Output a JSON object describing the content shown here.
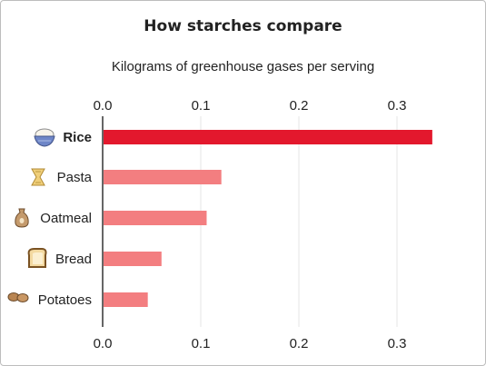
{
  "chart_data": {
    "type": "bar",
    "orientation": "horizontal",
    "title": "How starches compare",
    "subtitle": "Kilograms of greenhouse gases per serving",
    "categories": [
      "Rice",
      "Pasta",
      "Oatmeal",
      "Bread",
      "Potatoes"
    ],
    "category_icons": [
      "rice-bowl-icon",
      "pasta-icon",
      "oatmeal-sack-icon",
      "bread-icon",
      "potatoes-icon"
    ],
    "values": [
      0.336,
      0.121,
      0.106,
      0.06,
      0.046
    ],
    "highlight": "Rice",
    "xlim": [
      0,
      0.34
    ],
    "xticks": [
      0,
      0.1,
      0.2,
      0.3
    ],
    "xtick_labels": [
      "0.0",
      "0.1",
      "0.2",
      "0.3"
    ],
    "grid": "vertical",
    "colors": {
      "highlight": "#e3182d",
      "bar": "#f37e80",
      "grid": "#e6e6e6",
      "axis": "#666666"
    }
  }
}
